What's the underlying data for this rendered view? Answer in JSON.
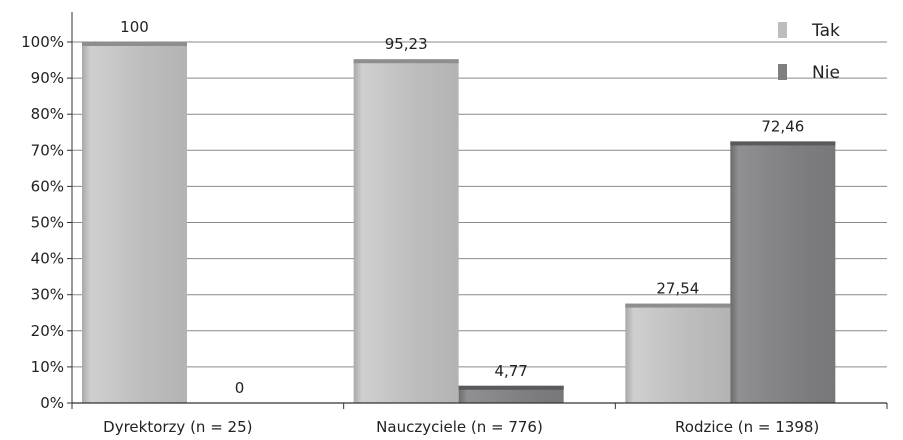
{
  "chart_data": {
    "type": "bar",
    "categories": [
      "Dyrektorzy (n = 25)",
      "Nauczyciele (n = 776)",
      "Rodzice (n = 1398)"
    ],
    "series": [
      {
        "name": "Tak",
        "values": [
          100,
          95.23,
          27.54
        ],
        "labels": [
          "100",
          "95,23",
          "27,54"
        ],
        "color": "#bdbdbd"
      },
      {
        "name": "Nie",
        "values": [
          0,
          4.77,
          72.46
        ],
        "labels": [
          "0",
          "4,77",
          "72,46"
        ],
        "color": "#7f7f81"
      }
    ],
    "y_ticks": [
      "0%",
      "10%",
      "20%",
      "30%",
      "40%",
      "50%",
      "60%",
      "70%",
      "80%",
      "90%",
      "100%"
    ],
    "ylim": [
      0,
      100
    ],
    "grid": true,
    "legend_position": "top-right"
  }
}
